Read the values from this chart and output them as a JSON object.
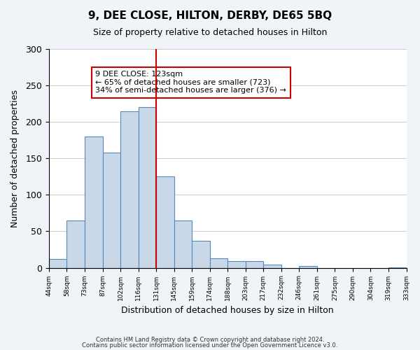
{
  "title": "9, DEE CLOSE, HILTON, DERBY, DE65 5BQ",
  "subtitle": "Size of property relative to detached houses in Hilton",
  "xlabel": "Distribution of detached houses by size in Hilton",
  "ylabel": "Number of detached properties",
  "bar_color": "#c8d8e8",
  "bar_edge_color": "#5588bb",
  "bins": [
    "44sqm",
    "58sqm",
    "73sqm",
    "87sqm",
    "102sqm",
    "116sqm",
    "131sqm",
    "145sqm",
    "159sqm",
    "174sqm",
    "188sqm",
    "203sqm",
    "217sqm",
    "232sqm",
    "246sqm",
    "261sqm",
    "275sqm",
    "290sqm",
    "304sqm",
    "319sqm",
    "333sqm"
  ],
  "values": [
    12,
    65,
    180,
    158,
    215,
    220,
    125,
    65,
    37,
    13,
    9,
    9,
    4,
    0,
    2,
    0,
    0,
    0,
    0,
    1
  ],
  "ylim": [
    0,
    300
  ],
  "yticks": [
    0,
    50,
    100,
    150,
    200,
    250,
    300
  ],
  "property_line_x": 5.5,
  "property_line_color": "#cc0000",
  "annotation_text": "9 DEE CLOSE: 123sqm\n← 65% of detached houses are smaller (723)\n34% of semi-detached houses are larger (376) →",
  "annotation_box_edge": "#cc0000",
  "footer1": "Contains HM Land Registry data © Crown copyright and database right 2024.",
  "footer2": "Contains public sector information licensed under the Open Government Licence v3.0.",
  "background_color": "#f0f4f8",
  "plot_background": "#ffffff"
}
